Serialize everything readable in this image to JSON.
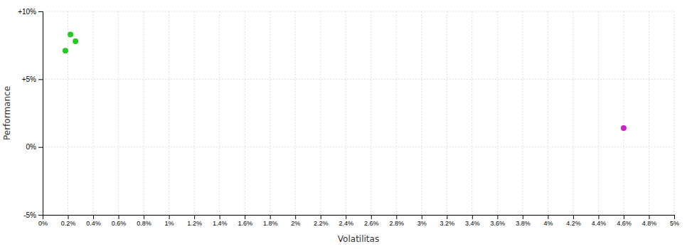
{
  "chart_data": {
    "type": "scatter",
    "x_label": "Volatilitas",
    "y_label": "Performance",
    "series": [
      {
        "color": "#22cc22",
        "x": [
          0.0022,
          0.0026,
          0.0018
        ],
        "values": [
          0.083,
          0.078,
          0.071
        ]
      },
      {
        "color": "#cc22cc",
        "x": [
          0.046
        ],
        "values": [
          0.014
        ]
      }
    ],
    "xlim": [
      0,
      0.05
    ],
    "ylim": [
      -0.05,
      0.1
    ],
    "xticks": [
      {
        "value": 0,
        "label": "0%"
      },
      {
        "value": 0.002,
        "label": "0.2%"
      },
      {
        "value": 0.004,
        "label": "0.4%"
      },
      {
        "value": 0.006,
        "label": "0.6%"
      },
      {
        "value": 0.008,
        "label": "0.8%"
      },
      {
        "value": 0.01,
        "label": "1%"
      },
      {
        "value": 0.012,
        "label": "1.2%"
      },
      {
        "value": 0.014,
        "label": "1.4%"
      },
      {
        "value": 0.016,
        "label": "1.6%"
      },
      {
        "value": 0.018,
        "label": "1.8%"
      },
      {
        "value": 0.02,
        "label": "2%"
      },
      {
        "value": 0.022,
        "label": "2.2%"
      },
      {
        "value": 0.024,
        "label": "2.4%"
      },
      {
        "value": 0.026,
        "label": "2.6%"
      },
      {
        "value": 0.028,
        "label": "2.8%"
      },
      {
        "value": 0.03,
        "label": "3%"
      },
      {
        "value": 0.032,
        "label": "3.2%"
      },
      {
        "value": 0.034,
        "label": "3.4%"
      },
      {
        "value": 0.036,
        "label": "3.6%"
      },
      {
        "value": 0.038,
        "label": "3.8%"
      },
      {
        "value": 0.04,
        "label": "4%"
      },
      {
        "value": 0.042,
        "label": "4.2%"
      },
      {
        "value": 0.044,
        "label": "4.4%"
      },
      {
        "value": 0.046,
        "label": "4.6%"
      },
      {
        "value": 0.048,
        "label": "4.8%"
      },
      {
        "value": 0.05,
        "label": "5%"
      }
    ],
    "yticks": [
      {
        "value": -0.05,
        "label": "-5%"
      },
      {
        "value": 0.0,
        "label": "0%"
      },
      {
        "value": 0.05,
        "label": "+5%"
      },
      {
        "value": 0.1,
        "label": "+10%"
      }
    ],
    "grid": true
  }
}
